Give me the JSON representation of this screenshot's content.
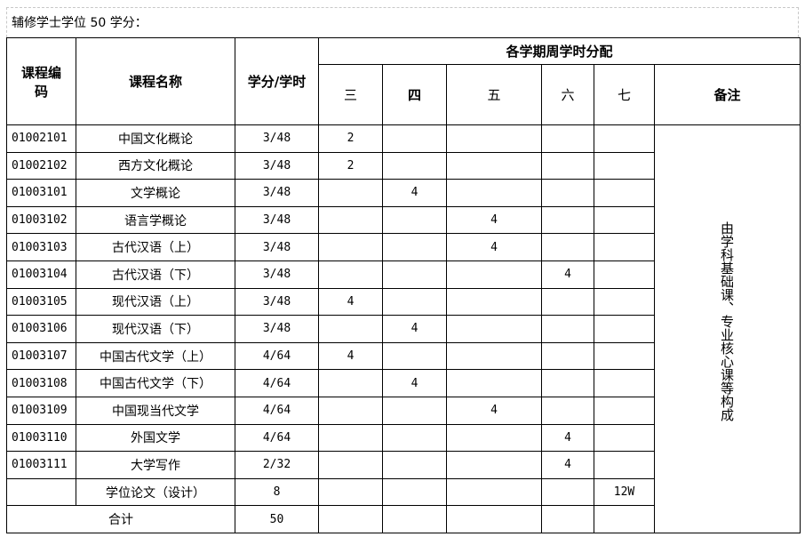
{
  "caption": "辅修学士学位 50 学分：",
  "header": {
    "code": "课程编码",
    "name": "课程名称",
    "credits": "学分/学时",
    "semester_group": "各学期周学时分配",
    "semesters": [
      "三",
      "四",
      "五",
      "六",
      "七"
    ],
    "remark": "备注"
  },
  "rows": [
    {
      "code": "01002101",
      "name": "中国文化概论",
      "credits": "3/48",
      "s": [
        "2",
        "",
        "",
        "",
        ""
      ]
    },
    {
      "code": "01002102",
      "name": "西方文化概论",
      "credits": "3/48",
      "s": [
        "2",
        "",
        "",
        "",
        ""
      ]
    },
    {
      "code": "01003101",
      "name": "文学概论",
      "credits": "3/48",
      "s": [
        "",
        "4",
        "",
        "",
        ""
      ]
    },
    {
      "code": "01003102",
      "name": "语言学概论",
      "credits": "3/48",
      "s": [
        "",
        "",
        "4",
        "",
        ""
      ]
    },
    {
      "code": "01003103",
      "name": "古代汉语（上）",
      "credits": "3/48",
      "s": [
        "",
        "",
        "4",
        "",
        ""
      ]
    },
    {
      "code": "01003104",
      "name": "古代汉语（下）",
      "credits": "3/48",
      "s": [
        "",
        "",
        "",
        "4",
        ""
      ]
    },
    {
      "code": "01003105",
      "name": "现代汉语（上）",
      "credits": "3/48",
      "s": [
        "4",
        "",
        "",
        "",
        ""
      ]
    },
    {
      "code": "01003106",
      "name": "现代汉语（下）",
      "credits": "3/48",
      "s": [
        "",
        "4",
        "",
        "",
        ""
      ]
    },
    {
      "code": "01003107",
      "name": "中国古代文学（上）",
      "credits": "4/64",
      "s": [
        "4",
        "",
        "",
        "",
        ""
      ]
    },
    {
      "code": "01003108",
      "name": "中国古代文学（下）",
      "credits": "4/64",
      "s": [
        "",
        "4",
        "",
        "",
        ""
      ]
    },
    {
      "code": "01003109",
      "name": "中国现当代文学",
      "credits": "4/64",
      "s": [
        "",
        "",
        "4",
        "",
        ""
      ]
    },
    {
      "code": "01003110",
      "name": "外国文学",
      "credits": "4/64",
      "s": [
        "",
        "",
        "",
        "4",
        ""
      ]
    },
    {
      "code": "01003111",
      "name": "大学写作",
      "credits": "2/32",
      "s": [
        "",
        "",
        "",
        "4",
        ""
      ]
    },
    {
      "code": "",
      "name": "学位论文（设计）",
      "credits": "8",
      "s": [
        "",
        "",
        "",
        "",
        "12W"
      ]
    }
  ],
  "total": {
    "label": "合计",
    "credits": "50"
  },
  "remark_text": "由学科基础课、专业核心课等构成"
}
